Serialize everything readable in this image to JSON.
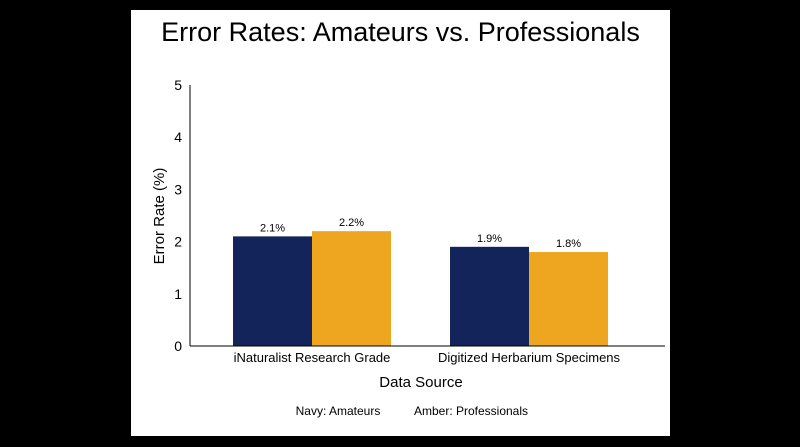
{
  "chart_data": {
    "type": "bar",
    "title": "Error Rates: Amateurs vs. Professionals",
    "xlabel": "Data Source",
    "ylabel": "Error Rate (%)",
    "categories": [
      "iNaturalist Research Grade",
      "Digitized Herbarium Specimens"
    ],
    "series": [
      {
        "name": "Amateurs",
        "color": "#13245a",
        "values": [
          2.1,
          1.9
        ],
        "labels": [
          "2.1%",
          "1.9%"
        ]
      },
      {
        "name": "Professionals",
        "color": "#eea620",
        "values": [
          2.2,
          1.8
        ],
        "labels": [
          "2.2%",
          "1.8%"
        ]
      }
    ],
    "ylim": [
      0,
      5
    ],
    "yticks": [
      0,
      1,
      2,
      3,
      4,
      5
    ],
    "grid": false,
    "legend": {
      "placement": "bottom",
      "entries": [
        "Navy: Amateurs",
        "Amber: Professionals"
      ]
    }
  }
}
